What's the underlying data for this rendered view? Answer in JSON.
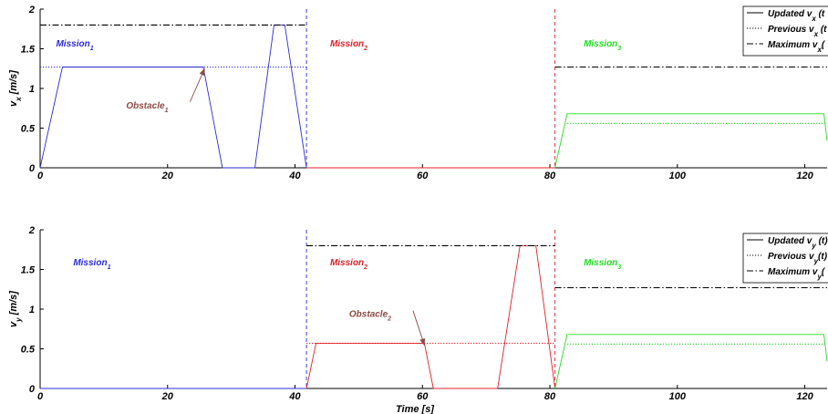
{
  "colors": {
    "mission1": "#2b2bd6",
    "mission2": "#e0202a",
    "mission3": "#22dd22",
    "obstacle": "#8b4a45",
    "axis": "#000000",
    "max": "#000000"
  },
  "xlabel": "Time [s]",
  "legend": {
    "top": [
      "Updated  v_x (t",
      "Previous  v_x (t",
      "Maximum  v_x("
    ],
    "bottom": [
      "Updated  v_y (t)",
      "Previous  v_y(t)",
      "Maximum  v_y("
    ]
  },
  "chart_data": [
    {
      "type": "line",
      "ylabel": "v_x [m/s]",
      "xlim": [
        0,
        123.5
      ],
      "ylim": [
        0,
        2
      ],
      "xticks": [
        0,
        20,
        40,
        60,
        80,
        100,
        120
      ],
      "yticks": [
        0,
        0.5,
        1,
        1.5,
        2
      ],
      "mission_labels": [
        {
          "text": "Mission",
          "sub": "1",
          "x": 2.5,
          "y": 1.53,
          "color_key": "mission1"
        },
        {
          "text": "Mission",
          "sub": "2",
          "x": 45.5,
          "y": 1.53,
          "color_key": "mission2"
        },
        {
          "text": "Mission",
          "sub": "3",
          "x": 85.3,
          "y": 1.53,
          "color_key": "mission3"
        }
      ],
      "annotation": {
        "text": "Obstacle",
        "sub": "1",
        "x": 13.5,
        "y": 0.75,
        "arrow_to": [
          25.8,
          1.27
        ]
      },
      "boundaries": [
        {
          "x": 41.8,
          "color_key": "mission1"
        },
        {
          "x": 80.8,
          "color_key": "mission2"
        }
      ],
      "series": [
        {
          "name": "Updated",
          "style": "solid",
          "color_key": "mission1",
          "x": [
            0,
            3.5,
            25.6,
            28.6,
            33.7,
            36.7,
            38.4,
            41.8
          ],
          "y": [
            0,
            1.27,
            1.27,
            0,
            0,
            1.8,
            1.8,
            0
          ]
        },
        {
          "name": "Updated",
          "style": "solid",
          "color_key": "mission2",
          "x": [
            41.8,
            80.8
          ],
          "y": [
            0,
            0
          ]
        },
        {
          "name": "Updated",
          "style": "solid",
          "color_key": "mission3",
          "x": [
            80.8,
            82.7,
            123,
            123.5
          ],
          "y": [
            0,
            0.68,
            0.68,
            0.34
          ]
        },
        {
          "name": "Previous",
          "style": "dotted",
          "color_key": "mission1",
          "x": [
            0,
            41.8
          ],
          "y": [
            1.27,
            1.27
          ]
        },
        {
          "name": "Previous",
          "style": "dotted",
          "color_key": "mission3",
          "x": [
            82.7,
            123.5
          ],
          "y": [
            0.56,
            0.56
          ]
        },
        {
          "name": "Maximum",
          "style": "dashdot",
          "color_key": "max",
          "x": [
            0,
            41.8
          ],
          "y": [
            1.8,
            1.8
          ]
        },
        {
          "name": "Maximum",
          "style": "dashdot",
          "color_key": "max",
          "x": [
            80.8,
            123.5
          ],
          "y": [
            1.27,
            1.27
          ]
        }
      ]
    },
    {
      "type": "line",
      "ylabel": "v_y [m/s]",
      "xlim": [
        0,
        123.5
      ],
      "ylim": [
        0,
        2
      ],
      "xticks": [
        0,
        20,
        40,
        60,
        80,
        100,
        120
      ],
      "yticks": [
        0,
        0.5,
        1,
        1.5,
        2
      ],
      "mission_labels": [
        {
          "text": "Mission",
          "sub": "1",
          "x": 5.2,
          "y": 1.55,
          "color_key": "mission1"
        },
        {
          "text": "Mission",
          "sub": "2",
          "x": 45.5,
          "y": 1.55,
          "color_key": "mission2"
        },
        {
          "text": "Mission",
          "sub": "3",
          "x": 85.3,
          "y": 1.55,
          "color_key": "mission3"
        }
      ],
      "annotation": {
        "text": "Obstacle",
        "sub": "2",
        "x": 48.5,
        "y": 0.9,
        "arrow_to": [
          60.3,
          0.57
        ]
      },
      "boundaries": [
        {
          "x": 41.8,
          "color_key": "mission1"
        },
        {
          "x": 80.8,
          "color_key": "mission2"
        }
      ],
      "series": [
        {
          "name": "Updated",
          "style": "solid",
          "color_key": "mission1",
          "x": [
            0,
            41.8
          ],
          "y": [
            0,
            0
          ]
        },
        {
          "name": "Updated",
          "style": "solid",
          "color_key": "mission2",
          "x": [
            41.8,
            43.3,
            60.3,
            61.7,
            71.8,
            75.3,
            77.8,
            80.8
          ],
          "y": [
            0,
            0.57,
            0.57,
            0,
            0,
            1.8,
            1.8,
            0
          ]
        },
        {
          "name": "Updated",
          "style": "solid",
          "color_key": "mission3",
          "x": [
            80.8,
            82.7,
            123,
            123.5
          ],
          "y": [
            0,
            0.68,
            0.68,
            0.34
          ]
        },
        {
          "name": "Previous",
          "style": "dotted",
          "color_key": "mission2",
          "x": [
            41.8,
            80.8
          ],
          "y": [
            0.57,
            0.57
          ]
        },
        {
          "name": "Previous",
          "style": "dotted",
          "color_key": "mission3",
          "x": [
            82.7,
            123.5
          ],
          "y": [
            0.56,
            0.56
          ]
        },
        {
          "name": "Maximum",
          "style": "dashdot",
          "color_key": "max",
          "x": [
            41.8,
            80.8
          ],
          "y": [
            1.8,
            1.8
          ]
        },
        {
          "name": "Maximum",
          "style": "dashdot",
          "color_key": "max",
          "x": [
            80.8,
            123.5
          ],
          "y": [
            1.27,
            1.27
          ]
        }
      ]
    }
  ]
}
